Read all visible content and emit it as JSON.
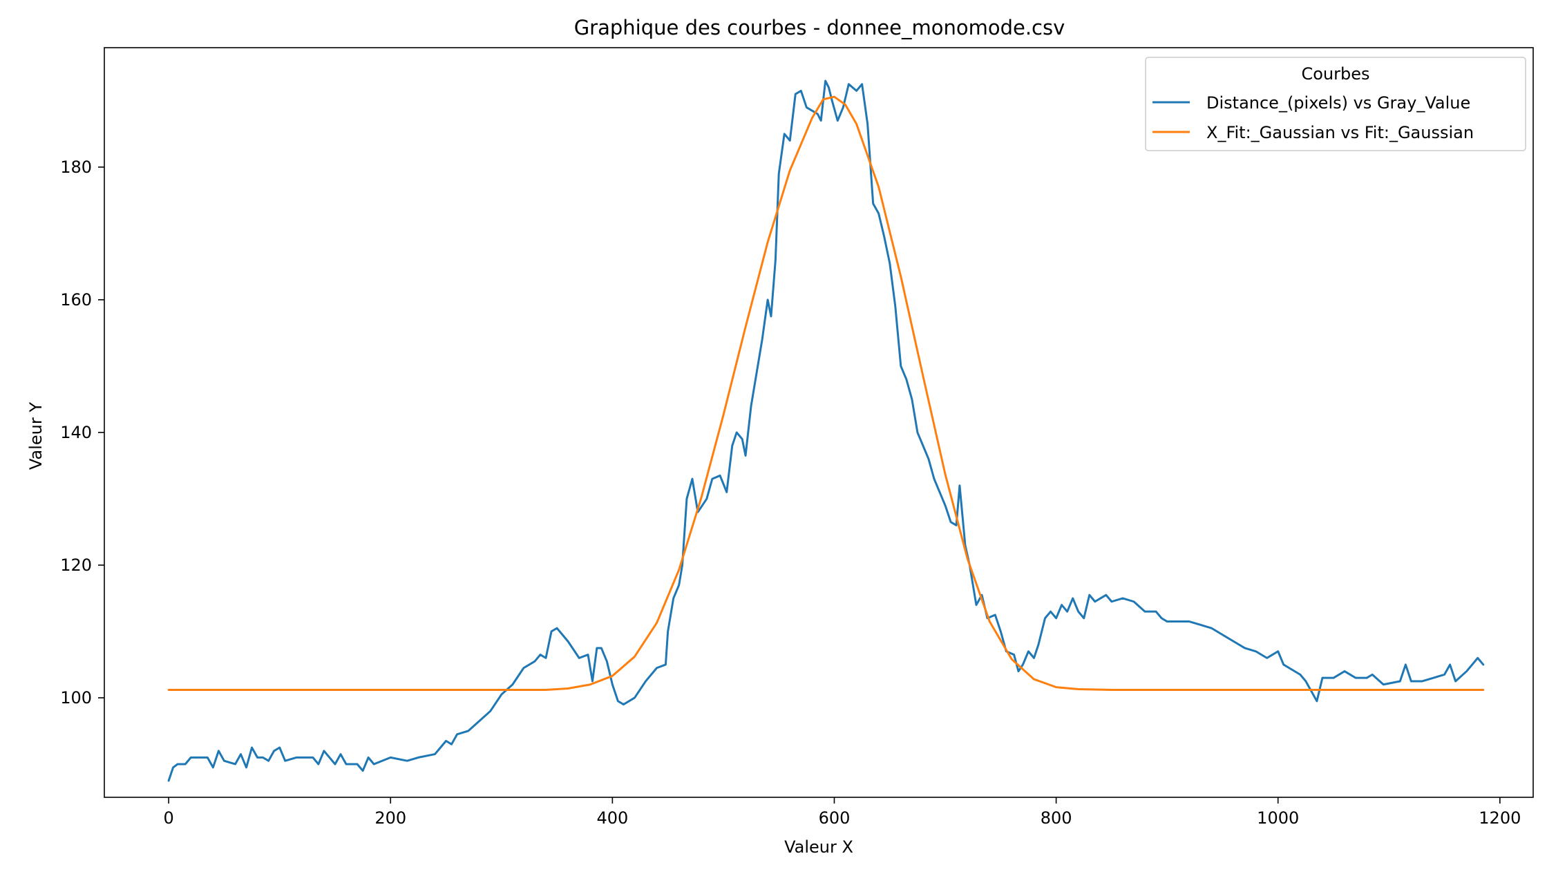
{
  "chart_data": {
    "type": "line",
    "title": "Graphique des courbes - donnee_monomode.csv",
    "xlabel": "Valeur X",
    "ylabel": "Valeur Y",
    "xlim": [
      -58,
      1230
    ],
    "ylim": [
      85,
      198
    ],
    "xticks": [
      0,
      200,
      400,
      600,
      800,
      1000,
      1200
    ],
    "yticks": [
      100,
      120,
      140,
      160,
      180
    ],
    "grid": false,
    "legend": {
      "title": "Courbes",
      "placement": "top-right"
    },
    "colors": {
      "series1": "#1f77b4",
      "series2": "#ff7f0e"
    },
    "series": [
      {
        "name": "Distance_(pixels) vs Gray_Value",
        "points": [
          [
            0,
            87.5
          ],
          [
            4,
            89.5
          ],
          [
            8,
            90
          ],
          [
            15,
            90
          ],
          [
            20,
            91
          ],
          [
            35,
            91
          ],
          [
            40,
            89.5
          ],
          [
            45,
            92
          ],
          [
            50,
            90.5
          ],
          [
            60,
            90
          ],
          [
            65,
            91.5
          ],
          [
            70,
            89.5
          ],
          [
            75,
            92.5
          ],
          [
            80,
            91
          ],
          [
            85,
            91
          ],
          [
            90,
            90.5
          ],
          [
            95,
            92
          ],
          [
            100,
            92.5
          ],
          [
            105,
            90.5
          ],
          [
            115,
            91
          ],
          [
            130,
            91
          ],
          [
            135,
            90
          ],
          [
            140,
            92
          ],
          [
            150,
            90
          ],
          [
            155,
            91.5
          ],
          [
            160,
            90
          ],
          [
            170,
            90
          ],
          [
            175,
            89
          ],
          [
            180,
            91
          ],
          [
            185,
            90
          ],
          [
            200,
            91
          ],
          [
            215,
            90.5
          ],
          [
            225,
            91
          ],
          [
            240,
            91.5
          ],
          [
            245,
            92.5
          ],
          [
            250,
            93.5
          ],
          [
            255,
            93
          ],
          [
            260,
            94.5
          ],
          [
            270,
            95
          ],
          [
            280,
            96.5
          ],
          [
            290,
            98
          ],
          [
            300,
            100.5
          ],
          [
            310,
            102
          ],
          [
            320,
            104.5
          ],
          [
            330,
            105.5
          ],
          [
            335,
            106.5
          ],
          [
            340,
            106
          ],
          [
            345,
            110
          ],
          [
            350,
            110.5
          ],
          [
            360,
            108.5
          ],
          [
            370,
            106
          ],
          [
            378,
            106.5
          ],
          [
            382,
            102.5
          ],
          [
            386,
            107.5
          ],
          [
            390,
            107.5
          ],
          [
            395,
            105.5
          ],
          [
            400,
            102
          ],
          [
            405,
            99.5
          ],
          [
            410,
            99
          ],
          [
            420,
            100
          ],
          [
            430,
            102.5
          ],
          [
            440,
            104.5
          ],
          [
            448,
            105
          ],
          [
            450,
            110
          ],
          [
            455,
            115
          ],
          [
            460,
            117
          ],
          [
            463,
            120
          ],
          [
            467,
            130
          ],
          [
            472,
            133
          ],
          [
            477,
            128
          ],
          [
            485,
            130
          ],
          [
            490,
            133
          ],
          [
            497,
            133.5
          ],
          [
            503,
            131
          ],
          [
            508,
            138
          ],
          [
            512,
            140
          ],
          [
            517,
            139
          ],
          [
            520,
            136.5
          ],
          [
            525,
            144
          ],
          [
            530,
            149
          ],
          [
            535,
            154
          ],
          [
            540,
            160
          ],
          [
            543,
            157.5
          ],
          [
            547,
            166
          ],
          [
            550,
            179
          ],
          [
            555,
            185
          ],
          [
            560,
            184
          ],
          [
            565,
            191
          ],
          [
            570,
            191.5
          ],
          [
            575,
            189
          ],
          [
            580,
            188.5
          ],
          [
            585,
            188
          ],
          [
            588,
            187
          ],
          [
            592,
            193
          ],
          [
            595,
            192
          ],
          [
            598,
            190
          ],
          [
            603,
            187
          ],
          [
            608,
            189
          ],
          [
            613,
            192.5
          ],
          [
            620,
            191.5
          ],
          [
            625,
            192.5
          ],
          [
            630,
            186.5
          ],
          [
            635,
            174.5
          ],
          [
            640,
            173
          ],
          [
            645,
            169.5
          ],
          [
            650,
            165.5
          ],
          [
            655,
            159
          ],
          [
            660,
            150
          ],
          [
            665,
            148
          ],
          [
            670,
            145
          ],
          [
            675,
            140
          ],
          [
            680,
            138
          ],
          [
            685,
            136
          ],
          [
            690,
            133
          ],
          [
            695,
            131
          ],
          [
            700,
            129
          ],
          [
            705,
            126.5
          ],
          [
            710,
            126
          ],
          [
            713,
            132
          ],
          [
            718,
            123
          ],
          [
            722,
            120
          ],
          [
            728,
            114
          ],
          [
            733,
            115.5
          ],
          [
            738,
            112
          ],
          [
            745,
            112.5
          ],
          [
            750,
            110
          ],
          [
            755,
            107
          ],
          [
            762,
            106.5
          ],
          [
            766,
            104
          ],
          [
            770,
            105
          ],
          [
            775,
            107
          ],
          [
            780,
            106
          ],
          [
            784,
            108
          ],
          [
            790,
            112
          ],
          [
            795,
            113
          ],
          [
            800,
            112
          ],
          [
            805,
            114
          ],
          [
            810,
            113
          ],
          [
            815,
            115
          ],
          [
            820,
            113
          ],
          [
            825,
            112
          ],
          [
            830,
            115.5
          ],
          [
            835,
            114.5
          ],
          [
            840,
            115
          ],
          [
            845,
            115.5
          ],
          [
            850,
            114.5
          ],
          [
            860,
            115
          ],
          [
            870,
            114.5
          ],
          [
            880,
            113
          ],
          [
            890,
            113
          ],
          [
            895,
            112
          ],
          [
            900,
            111.5
          ],
          [
            920,
            111.5
          ],
          [
            930,
            111
          ],
          [
            940,
            110.5
          ],
          [
            950,
            109.5
          ],
          [
            960,
            108.5
          ],
          [
            970,
            107.5
          ],
          [
            980,
            107
          ],
          [
            990,
            106
          ],
          [
            995,
            106.5
          ],
          [
            1000,
            107
          ],
          [
            1005,
            105
          ],
          [
            1010,
            104.5
          ],
          [
            1020,
            103.5
          ],
          [
            1025,
            102.5
          ],
          [
            1030,
            101
          ],
          [
            1035,
            99.5
          ],
          [
            1040,
            103
          ],
          [
            1050,
            103
          ],
          [
            1060,
            104
          ],
          [
            1070,
            103
          ],
          [
            1080,
            103
          ],
          [
            1085,
            103.5
          ],
          [
            1095,
            102
          ],
          [
            1110,
            102.5
          ],
          [
            1115,
            105
          ],
          [
            1120,
            102.5
          ],
          [
            1130,
            102.5
          ],
          [
            1140,
            103
          ],
          [
            1150,
            103.5
          ],
          [
            1155,
            105
          ],
          [
            1160,
            102.5
          ],
          [
            1170,
            104
          ],
          [
            1180,
            106
          ],
          [
            1185,
            105
          ]
        ]
      },
      {
        "name": "X_Fit:_Gaussian vs Fit:_Gaussian",
        "points": [
          [
            0,
            101.2
          ],
          [
            340,
            101.2
          ],
          [
            360,
            101.4
          ],
          [
            380,
            102
          ],
          [
            400,
            103.3
          ],
          [
            420,
            106.2
          ],
          [
            440,
            111.3
          ],
          [
            460,
            119.3
          ],
          [
            480,
            130.1
          ],
          [
            500,
            142.6
          ],
          [
            520,
            155.9
          ],
          [
            540,
            168.7
          ],
          [
            560,
            179.5
          ],
          [
            580,
            187.4
          ],
          [
            590,
            190.2
          ],
          [
            600,
            190.6
          ],
          [
            610,
            189.4
          ],
          [
            620,
            186.5
          ],
          [
            640,
            177
          ],
          [
            660,
            163.5
          ],
          [
            680,
            148.5
          ],
          [
            700,
            133.7
          ],
          [
            720,
            121
          ],
          [
            740,
            111.5
          ],
          [
            760,
            105.8
          ],
          [
            780,
            102.8
          ],
          [
            800,
            101.6
          ],
          [
            820,
            101.3
          ],
          [
            850,
            101.2
          ],
          [
            1185,
            101.2
          ]
        ]
      }
    ]
  }
}
